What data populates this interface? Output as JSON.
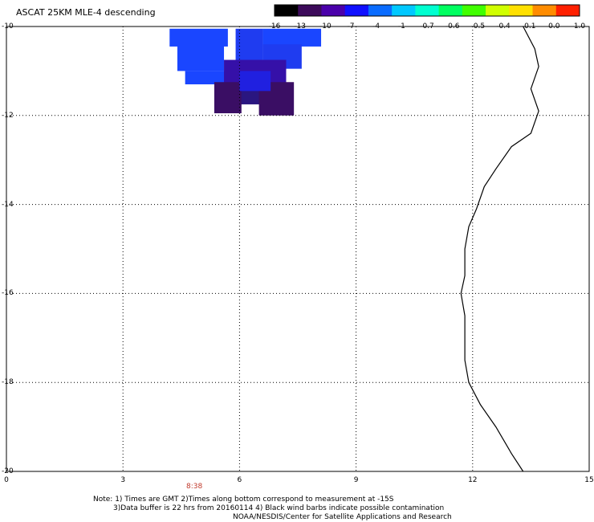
{
  "title": "ASCAT 25KM MLE-4 descending",
  "colorbar": {
    "ticks": [
      "-16",
      "-13",
      "-10",
      "-7",
      "-4",
      "-1",
      "-0.7",
      "-0.6",
      "-0.5",
      "-0.4",
      "-0.1",
      "0.0",
      "1.0"
    ],
    "colors": [
      "#000000",
      "#3c0a5a",
      "#4a00aa",
      "#1010ff",
      "#0a6cff",
      "#00c8ff",
      "#00ffd0",
      "#00ff60",
      "#40ff00",
      "#d0ff00",
      "#ffe000",
      "#ff8c00",
      "#ff2000"
    ]
  },
  "map": {
    "lon_range": [
      0,
      15
    ],
    "lat_range": [
      -20,
      -10
    ],
    "x_ticks": [
      "0",
      "3",
      "6",
      "9",
      "12",
      "15"
    ],
    "y_ticks": [
      "-10",
      "-12",
      "-14",
      "-16",
      "-18",
      "-20"
    ],
    "grid": "dotted",
    "pass_time": "8:38",
    "pass_time_lon": 4.9
  },
  "swath": {
    "cells": [
      {
        "lon": 4.2,
        "lat": -10.05,
        "w": 1.5,
        "h": 0.4,
        "color": "#1a46ff"
      },
      {
        "lon": 4.4,
        "lat": -10.4,
        "w": 1.2,
        "h": 0.6,
        "color": "#1a46ff"
      },
      {
        "lon": 4.6,
        "lat": -11.0,
        "w": 1.2,
        "h": 0.3,
        "color": "#1a46ff"
      },
      {
        "lon": 5.9,
        "lat": -10.05,
        "w": 0.7,
        "h": 1.6,
        "color": "#1f3cf0"
      },
      {
        "lon": 6.6,
        "lat": -10.05,
        "w": 1.5,
        "h": 0.4,
        "color": "#1a46ff"
      },
      {
        "lon": 6.6,
        "lat": -10.4,
        "w": 1.0,
        "h": 0.55,
        "color": "#1f3cf0"
      },
      {
        "lon": 5.6,
        "lat": -10.75,
        "w": 1.6,
        "h": 0.55,
        "color": "#3510a8"
      },
      {
        "lon": 5.6,
        "lat": -11.3,
        "w": 1.0,
        "h": 0.45,
        "color": "#2a1680"
      },
      {
        "lon": 5.35,
        "lat": -11.25,
        "w": 0.7,
        "h": 0.7,
        "color": "#3a0e64"
      },
      {
        "lon": 6.5,
        "lat": -11.25,
        "w": 0.9,
        "h": 0.75,
        "color": "#3a0e64"
      },
      {
        "lon": 6.0,
        "lat": -11.0,
        "w": 0.8,
        "h": 0.45,
        "color": "#2020e0"
      }
    ]
  },
  "coastline": {
    "points": [
      [
        13.3,
        -10.0
      ],
      [
        13.6,
        -10.5
      ],
      [
        13.7,
        -10.9
      ],
      [
        13.5,
        -11.4
      ],
      [
        13.7,
        -11.9
      ],
      [
        13.5,
        -12.4
      ],
      [
        13.0,
        -12.7
      ],
      [
        12.6,
        -13.2
      ],
      [
        12.3,
        -13.6
      ],
      [
        12.1,
        -14.1
      ],
      [
        11.9,
        -14.5
      ],
      [
        11.8,
        -15.0
      ],
      [
        11.8,
        -15.6
      ],
      [
        11.7,
        -16.0
      ],
      [
        11.8,
        -16.5
      ],
      [
        11.8,
        -17.0
      ],
      [
        11.8,
        -17.5
      ],
      [
        11.9,
        -18.0
      ],
      [
        12.2,
        -18.5
      ],
      [
        12.6,
        -19.0
      ],
      [
        13.0,
        -19.6
      ],
      [
        13.3,
        -20.0
      ]
    ]
  },
  "notes": {
    "line1": "Note: 1) Times are GMT 2)Times along bottom correspond to measurement at -15S",
    "line2": "3)Data buffer is 22 hrs from 20160114 4) Black wind barbs indicate possible contamination",
    "line3": "NOAA/NESDIS/Center for Satellite Applications and Research"
  }
}
